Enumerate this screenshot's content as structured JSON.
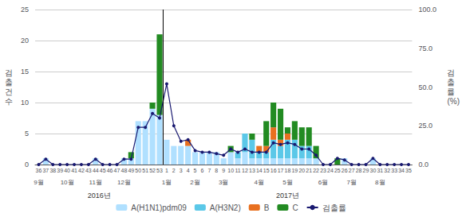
{
  "chart_data": {
    "type": "bar",
    "stacked": true,
    "categories": [
      "36",
      "37",
      "38",
      "39",
      "40",
      "41",
      "42",
      "43",
      "44",
      "45",
      "46",
      "47",
      "48",
      "49",
      "50",
      "51",
      "52",
      "53",
      "1",
      "2",
      "3",
      "4",
      "5",
      "6",
      "7",
      "8",
      "9",
      "10",
      "11",
      "12",
      "13",
      "14",
      "15",
      "16",
      "17",
      "18",
      "19",
      "20",
      "21",
      "22",
      "23",
      "24",
      "25",
      "26",
      "27",
      "28",
      "29",
      "30",
      "31",
      "32",
      "33",
      "34",
      "35"
    ],
    "series": [
      {
        "name": "A(H1N1)pdm09",
        "type": "bar",
        "color": "#B0E0FF",
        "values": [
          0,
          1,
          0,
          0,
          0,
          0,
          0,
          0,
          1,
          0,
          0,
          0,
          1,
          1,
          7,
          7,
          9,
          8,
          4,
          3,
          3,
          3,
          2,
          2,
          2,
          2,
          1,
          2,
          1,
          2,
          1,
          1,
          1,
          1,
          1,
          1,
          1,
          1,
          1,
          1,
          0,
          0,
          0,
          1,
          0,
          0,
          0,
          1,
          0,
          0,
          0,
          0,
          0
        ]
      },
      {
        "name": "A(H3N2)",
        "type": "bar",
        "color": "#5BC8E8",
        "values": [
          0,
          0,
          0,
          0,
          0,
          0,
          0,
          0,
          0,
          0,
          0,
          0,
          0,
          0,
          0,
          0,
          0,
          0,
          0,
          0,
          0,
          0,
          0,
          0,
          0,
          0,
          0,
          0,
          1,
          3,
          3,
          1,
          1,
          3,
          2,
          3,
          3,
          2,
          2,
          0,
          0,
          0,
          0,
          0,
          0,
          0,
          0,
          0,
          0,
          0,
          0,
          0,
          0
        ]
      },
      {
        "name": "B",
        "type": "bar",
        "color": "#E87020",
        "values": [
          0,
          0,
          0,
          0,
          0,
          0,
          0,
          0,
          0,
          0,
          0,
          0,
          0,
          0,
          0,
          0,
          0,
          0,
          0,
          0,
          0,
          1,
          0,
          0,
          0,
          0,
          0,
          0,
          0,
          0,
          0,
          1,
          1,
          2,
          1,
          1,
          0,
          0,
          0,
          0,
          0,
          0,
          0,
          0,
          0,
          0,
          0,
          0,
          0,
          0,
          0,
          0,
          0
        ]
      },
      {
        "name": "C",
        "type": "bar",
        "color": "#228B22",
        "values": [
          0,
          0,
          0,
          0,
          0,
          0,
          0,
          0,
          0,
          0,
          0,
          0,
          0,
          1,
          0,
          0,
          1,
          13,
          0,
          0,
          0,
          0,
          0,
          0,
          0,
          0,
          0,
          1,
          0,
          0,
          1,
          0,
          4,
          4,
          5,
          1,
          3,
          3,
          3,
          2,
          0,
          0,
          1,
          0,
          0,
          0,
          0,
          0,
          0,
          0,
          0,
          0,
          0
        ]
      },
      {
        "name": "검출률",
        "type": "line",
        "axis": "y2",
        "color": "#191970",
        "marker": "circle",
        "values": [
          0,
          3.5,
          0,
          0,
          0,
          0,
          0,
          0,
          3.5,
          0,
          0,
          0,
          3.5,
          3.5,
          24,
          24,
          33,
          30,
          52,
          25,
          15,
          16,
          9,
          8,
          8,
          7,
          6,
          10,
          8,
          10,
          8,
          8,
          8,
          14,
          13,
          14,
          13,
          10,
          10,
          6,
          0,
          0,
          4,
          3,
          0,
          0,
          0,
          4,
          0,
          0,
          0,
          0,
          0
        ]
      }
    ],
    "ylabel": "검\n출\n건\n수",
    "y2label": "검\n출\n률\n(%)",
    "ylim": [
      0,
      25
    ],
    "yticks": [
      0,
      5,
      10,
      15,
      20,
      25
    ],
    "y2lim": [
      0,
      100
    ],
    "y2ticks": [
      {
        "value": 0,
        "label": "0.0"
      },
      {
        "value": 25,
        "label": "25.0"
      },
      {
        "value": 50,
        "label": "50.0"
      },
      {
        "value": 75,
        "label": "75.0"
      },
      {
        "value": 100,
        "label": "100.0"
      }
    ],
    "annotations": [
      {
        "text": "9월",
        "x": "36"
      },
      {
        "text": "10월",
        "x": "40"
      },
      {
        "text": "11월",
        "x": "44"
      },
      {
        "text": "12월",
        "x": "48"
      },
      {
        "text": "1월",
        "x": "1"
      },
      {
        "text": "2월",
        "x": "5"
      },
      {
        "text": "3월",
        "x": "9"
      },
      {
        "text": "4월",
        "x": "14"
      },
      {
        "text": "5월",
        "x": "18"
      },
      {
        "text": "6월",
        "x": "23"
      },
      {
        "text": "7월",
        "x": "27"
      },
      {
        "text": "8월",
        "x": "31"
      },
      {
        "text": "2016년",
        "x_range": [
          "36",
          "53"
        ]
      },
      {
        "text": "2017년",
        "x_range": [
          "1",
          "35"
        ]
      }
    ],
    "grid": true,
    "legend": "bottom"
  }
}
